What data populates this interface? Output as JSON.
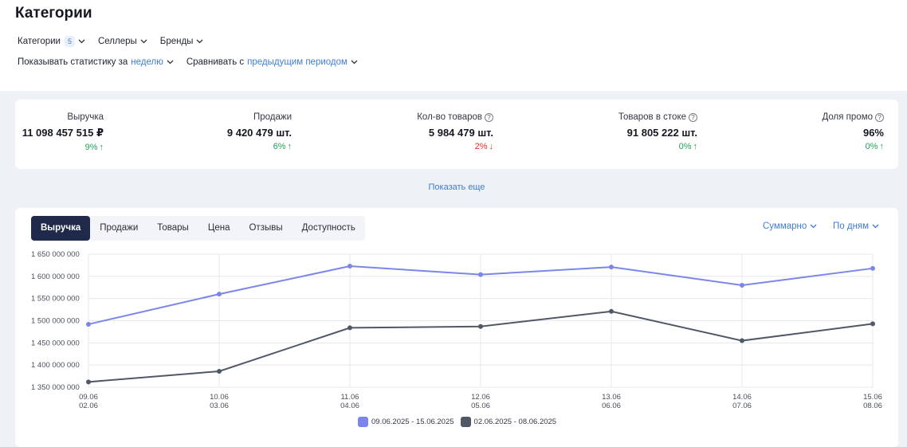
{
  "header": {
    "title": "Категории",
    "filters": [
      {
        "label": "Категории",
        "badge": "5"
      },
      {
        "label": "Селлеры"
      },
      {
        "label": "Бренды"
      }
    ],
    "period": {
      "prefix": "Показывать статистику за",
      "value": "неделю",
      "compare_prefix": "Сравнивать с",
      "compare_value": "предыдущим периодом"
    }
  },
  "kpis": [
    {
      "label": "Выручка",
      "value": "11 098 457 515 ₽",
      "delta": "9%",
      "trend": "up",
      "help": false
    },
    {
      "label": "Продажи",
      "value": "9 420 479 шт.",
      "delta": "6%",
      "trend": "up",
      "help": false
    },
    {
      "label": "Кол-во товаров",
      "value": "5 984 479 шт.",
      "delta": "2%",
      "trend": "down",
      "help": true
    },
    {
      "label": "Товаров в стоке",
      "value": "91 805 222 шт.",
      "delta": "0%",
      "trend": "up",
      "help": true
    },
    {
      "label": "Доля промо",
      "value": "96%",
      "delta": "0%",
      "trend": "up",
      "help": true
    }
  ],
  "show_more": "Показать еще",
  "tabs": [
    {
      "label": "Выручка",
      "active": true
    },
    {
      "label": "Продажи",
      "active": false
    },
    {
      "label": "Товары",
      "active": false
    },
    {
      "label": "Цена",
      "active": false
    },
    {
      "label": "Отзывы",
      "active": false
    },
    {
      "label": "Доступность",
      "active": false
    }
  ],
  "controls": {
    "aggregate": "Суммарно",
    "granularity": "По дням"
  },
  "colors": {
    "current": "#7b86e8",
    "previous": "#505866",
    "accent": "#3e7dd0",
    "up": "#1fa45a",
    "down": "#e0301e"
  },
  "chart_data": {
    "type": "line",
    "x": [
      "09.06",
      "10.06",
      "11.06",
      "12.06",
      "13.06",
      "14.06",
      "15.06"
    ],
    "x_secondary": [
      "02.06",
      "03.06",
      "04.06",
      "05.06",
      "06.06",
      "07.06",
      "08.06"
    ],
    "ylim": [
      1350000000,
      1650000000
    ],
    "yticks": [
      {
        "value": 1350000000,
        "label": "1 350 000 000"
      },
      {
        "value": 1400000000,
        "label": "1 400 000 000"
      },
      {
        "value": 1450000000,
        "label": "1 450 000 000"
      },
      {
        "value": 1500000000,
        "label": "1 500 000 000"
      },
      {
        "value": 1550000000,
        "label": "1 550 000 000"
      },
      {
        "value": 1600000000,
        "label": "1 600 000 000"
      },
      {
        "value": 1650000000,
        "label": "1 650 000 000"
      }
    ],
    "grid": true,
    "legend_position": "bottom",
    "series": [
      {
        "name": "09.06.2025 - 15.06.2025",
        "color": "#7b86e8",
        "values": [
          1492000000,
          1560000000,
          1623000000,
          1604000000,
          1621000000,
          1580000000,
          1618000000
        ]
      },
      {
        "name": "02.06.2025 - 08.06.2025",
        "color": "#505866",
        "values": [
          1362000000,
          1386000000,
          1484000000,
          1487000000,
          1521000000,
          1455000000,
          1493000000
        ]
      }
    ]
  }
}
